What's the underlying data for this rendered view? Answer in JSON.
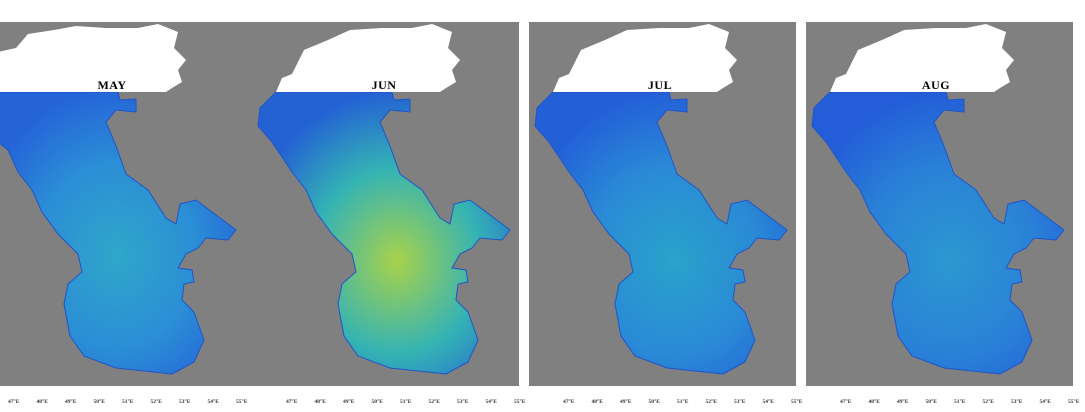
{
  "figure": {
    "panels": [
      {
        "month": "MAY",
        "colors": {
          "center": "#2fa7c9",
          "mid": "#2b8ed6",
          "edge": "#2563d8"
        }
      },
      {
        "month": "JUN",
        "colors": {
          "center": "#a8d24a",
          "mid": "#34b3b4",
          "edge": "#2462d4"
        }
      },
      {
        "month": "JUL",
        "colors": {
          "center": "#29a3cb",
          "mid": "#2a8ad6",
          "edge": "#2360d8"
        }
      },
      {
        "month": "AUG",
        "colors": {
          "center": "#2c98d0",
          "mid": "#2a82d7",
          "edge": "#235ed8"
        }
      }
    ],
    "lon_ticks": [
      "47°E",
      "48°E",
      "49°E",
      "50°E",
      "51°E",
      "52°E",
      "53°E",
      "54°E",
      "55°E"
    ],
    "colors": {
      "land": "#808080",
      "ice": "#ffffff",
      "label": "#000000"
    }
  }
}
